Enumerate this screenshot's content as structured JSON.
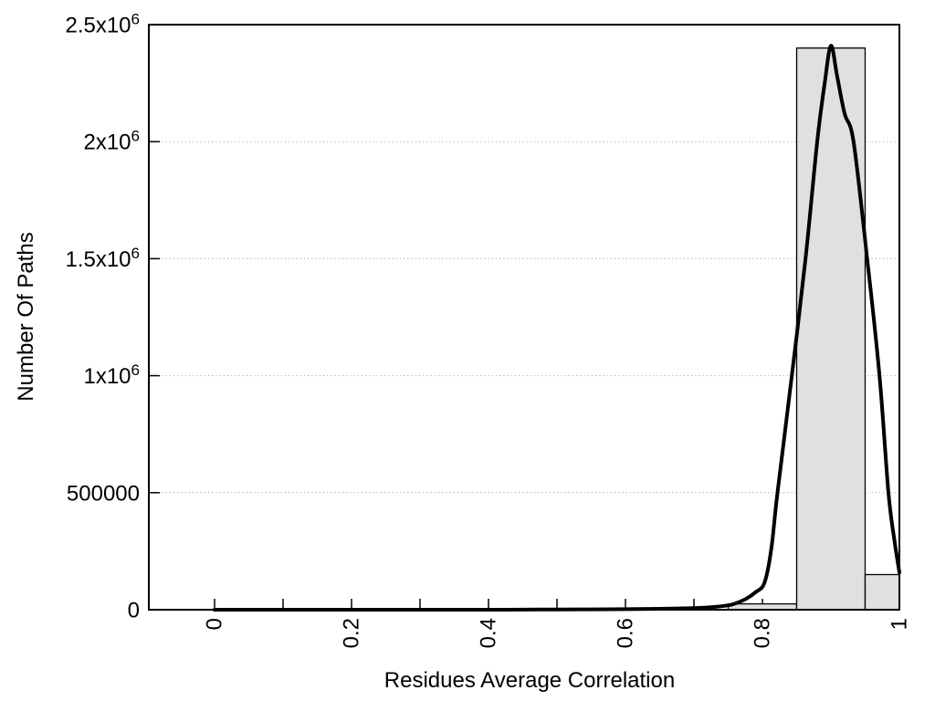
{
  "chart_data": {
    "type": "histogram-with-line",
    "title": "",
    "xlabel": "Residues Average Correlation",
    "ylabel": "Number Of Paths",
    "xlim": [
      -0.096,
      1.0
    ],
    "ylim": [
      0,
      2500000
    ],
    "grid": "horizontal-dotted-at-major-y-ticks",
    "legend": "none",
    "y_ticks": [
      {
        "v": 0,
        "label": "0"
      },
      {
        "v": 500000,
        "label": "500000"
      },
      {
        "v": 1000000,
        "label": "1x10^6"
      },
      {
        "v": 1500000,
        "label": "1.5x10^6"
      },
      {
        "v": 2000000,
        "label": "2x10^6"
      },
      {
        "v": 2500000,
        "label": "2.5x10^6"
      }
    ],
    "x_ticks": [
      {
        "v": 0.0,
        "label": "0"
      },
      {
        "v": 0.1,
        "label": ""
      },
      {
        "v": 0.2,
        "label": "0.2"
      },
      {
        "v": 0.3,
        "label": ""
      },
      {
        "v": 0.4,
        "label": "0.4"
      },
      {
        "v": 0.5,
        "label": ""
      },
      {
        "v": 0.6,
        "label": "0.6"
      },
      {
        "v": 0.7,
        "label": ""
      },
      {
        "v": 0.8,
        "label": "0.8"
      },
      {
        "v": 0.9,
        "label": ""
      },
      {
        "v": 1.0,
        "label": "1"
      }
    ],
    "bars": [
      {
        "x0": 0.75,
        "x1": 0.85,
        "count": 25000
      },
      {
        "x0": 0.85,
        "x1": 0.95,
        "count": 2400000
      },
      {
        "x0": 0.95,
        "x1": 1.0,
        "count": 150000
      }
    ],
    "curve_points": [
      [
        0.0,
        0
      ],
      [
        0.05,
        0
      ],
      [
        0.1,
        0
      ],
      [
        0.15,
        0
      ],
      [
        0.2,
        0
      ],
      [
        0.25,
        0
      ],
      [
        0.3,
        0
      ],
      [
        0.35,
        0
      ],
      [
        0.4,
        0
      ],
      [
        0.45,
        500
      ],
      [
        0.5,
        1000
      ],
      [
        0.55,
        1500
      ],
      [
        0.6,
        2500
      ],
      [
        0.65,
        4000
      ],
      [
        0.7,
        7000
      ],
      [
        0.73,
        12000
      ],
      [
        0.755,
        22000
      ],
      [
        0.775,
        45000
      ],
      [
        0.79,
        75000
      ],
      [
        0.803,
        115000
      ],
      [
        0.813,
        260000
      ],
      [
        0.822,
        500000
      ],
      [
        0.843,
        1000000
      ],
      [
        0.863,
        1500000
      ],
      [
        0.88,
        2000000
      ],
      [
        0.891,
        2250000
      ],
      [
        0.9,
        2410000
      ],
      [
        0.909,
        2280000
      ],
      [
        0.92,
        2120000
      ],
      [
        0.933,
        2000000
      ],
      [
        0.953,
        1500000
      ],
      [
        0.971,
        1000000
      ],
      [
        0.984,
        500000
      ],
      [
        0.993,
        290000
      ],
      [
        1.0,
        160000
      ]
    ],
    "colors": {
      "background": "#ffffff",
      "bar_fill": "#e0e0e0",
      "bar_stroke": "#000000",
      "curve": "#000000",
      "grid": "#9a9a9a",
      "axis": "#000000"
    }
  }
}
